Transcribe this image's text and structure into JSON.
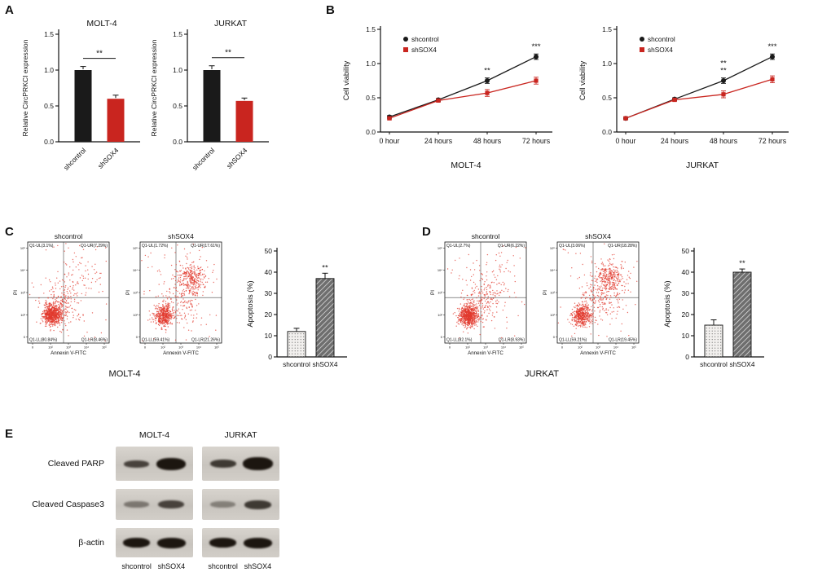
{
  "colors": {
    "black_series": "#1a1a1a",
    "red_series": "#c9251f",
    "flow_dot": "#e23a2e",
    "axis": "#1a1a1a"
  },
  "panels": {
    "a": {
      "label": "A"
    },
    "b": {
      "label": "B"
    },
    "c": {
      "label": "C",
      "group_label": "MOLT-4"
    },
    "d": {
      "label": "D",
      "group_label": "JURKAT"
    },
    "e": {
      "label": "E",
      "col_headers": [
        "MOLT-4",
        "JURKAT"
      ],
      "rows": [
        {
          "label": "Cleaved PARP",
          "bands": [
            [
              {
                "i": 0.75,
                "h": 9
              },
              {
                "i": 1.0,
                "h": 15
              }
            ],
            [
              {
                "i": 0.8,
                "h": 10
              },
              {
                "i": 1.0,
                "h": 16
              }
            ]
          ]
        },
        {
          "label": "Cleaved Caspase3",
          "bands": [
            [
              {
                "i": 0.45,
                "h": 8
              },
              {
                "i": 0.75,
                "h": 10
              }
            ],
            [
              {
                "i": 0.4,
                "h": 8
              },
              {
                "i": 0.8,
                "h": 11
              }
            ]
          ]
        },
        {
          "label": "β-actin",
          "bands": [
            [
              {
                "i": 1.0,
                "h": 12
              },
              {
                "i": 1.0,
                "h": 13
              }
            ],
            [
              {
                "i": 1.0,
                "h": 12
              },
              {
                "i": 1.0,
                "h": 13
              }
            ]
          ]
        }
      ],
      "lane_labels": [
        "shcontrol",
        "shSOX4",
        "shcontrol",
        "shSOX4"
      ]
    }
  },
  "chart_data": [
    {
      "id": "a-molt4",
      "type": "bar",
      "title": "MOLT-4",
      "ylabel": "Relative CircPRKCI expression",
      "categories": [
        "shcontrol",
        "shSOX4"
      ],
      "values": [
        1.0,
        0.6
      ],
      "errors": [
        0.05,
        0.05
      ],
      "ylim": [
        0,
        1.5
      ],
      "yticks": [
        0,
        0.5,
        1.0,
        1.5
      ],
      "significance": "**",
      "bar_colors": [
        "#1a1a1a",
        "#c9251f"
      ]
    },
    {
      "id": "a-jurkat",
      "type": "bar",
      "title": "JURKAT",
      "ylabel": "Relative CircPRKCI expression",
      "categories": [
        "shcontrol",
        "shSOX4"
      ],
      "values": [
        1.0,
        0.57
      ],
      "errors": [
        0.06,
        0.04
      ],
      "ylim": [
        0,
        1.5
      ],
      "yticks": [
        0,
        0.5,
        1.0,
        1.5
      ],
      "significance": "**",
      "bar_colors": [
        "#1a1a1a",
        "#c9251f"
      ]
    },
    {
      "id": "b-molt4",
      "type": "line",
      "title": "MOLT-4",
      "ylabel": "Cell viability",
      "x_labels": [
        "0 hour",
        "24 hours",
        "48 hours",
        "72 hours"
      ],
      "ylim": [
        0,
        1.5
      ],
      "yticks": [
        0,
        0.5,
        1.0,
        1.5
      ],
      "series": [
        {
          "name": "shcontrol",
          "color": "#1a1a1a",
          "marker": "circle",
          "values": [
            0.22,
            0.47,
            0.75,
            1.1
          ],
          "errors": [
            0.02,
            0.02,
            0.04,
            0.04
          ]
        },
        {
          "name": "shSOX4",
          "color": "#c9251f",
          "marker": "square",
          "values": [
            0.2,
            0.46,
            0.57,
            0.75
          ],
          "errors": [
            0.02,
            0.02,
            0.05,
            0.05
          ]
        }
      ],
      "annotations": [
        {
          "x_index": 2,
          "lines": [
            "**"
          ]
        },
        {
          "x_index": 3,
          "lines": [
            "***"
          ]
        }
      ],
      "legend_position": "top-left"
    },
    {
      "id": "b-jurkat",
      "type": "line",
      "title": "JURKAT",
      "ylabel": "Cell viability",
      "x_labels": [
        "0 hour",
        "24 hours",
        "48 hours",
        "72 hours"
      ],
      "ylim": [
        0,
        1.5
      ],
      "yticks": [
        0,
        0.5,
        1.0,
        1.5
      ],
      "series": [
        {
          "name": "shcontrol",
          "color": "#1a1a1a",
          "marker": "circle",
          "values": [
            0.2,
            0.48,
            0.75,
            1.1
          ],
          "errors": [
            0.02,
            0.02,
            0.04,
            0.04
          ]
        },
        {
          "name": "shSOX4",
          "color": "#c9251f",
          "marker": "square",
          "values": [
            0.2,
            0.47,
            0.55,
            0.77
          ],
          "errors": [
            0.02,
            0.02,
            0.05,
            0.05
          ]
        }
      ],
      "annotations": [
        {
          "x_index": 2,
          "lines": [
            "**",
            "**"
          ]
        },
        {
          "x_index": 3,
          "lines": [
            "***"
          ]
        }
      ],
      "legend_position": "top-left"
    },
    {
      "id": "c-flow-shcontrol",
      "type": "scatter-flow",
      "title": "shcontrol",
      "xlabel": "Annexin V-FITC",
      "ylabel": "PI",
      "axis_ticks": [
        "0",
        "10²",
        "10³",
        "10⁴",
        "10⁵"
      ],
      "quadrant_labels": {
        "ul": "Q1-UL(3.1%)",
        "ur": "Q1-UR(7.29%)",
        "ll": "Q1-LL(80.84%)",
        "lr": "Q1-LR(8.46%)"
      },
      "seed": 11,
      "clusters": [
        {
          "n": 680,
          "cx": 0.3,
          "cy": 0.72,
          "sx": 0.055,
          "sy": 0.05
        },
        {
          "n": 180,
          "cx": 0.4,
          "cy": 0.63,
          "sx": 0.1,
          "sy": 0.1
        },
        {
          "n": 90,
          "cx": 0.58,
          "cy": 0.4,
          "sx": 0.16,
          "sy": 0.15
        },
        {
          "n": 50,
          "uniform": true
        }
      ]
    },
    {
      "id": "c-flow-shsox4",
      "type": "scatter-flow",
      "title": "shSOX4",
      "xlabel": "Annexin V-FITC",
      "ylabel": "PI",
      "axis_ticks": [
        "0",
        "10²",
        "10³",
        "10⁴",
        "10⁵"
      ],
      "quadrant_labels": {
        "ul": "Q1-UL(1.72%)",
        "ur": "Q1-UR(17.61%)",
        "ll": "Q1-LL(59.41%)",
        "lr": "Q1-LR(21.26%)"
      },
      "seed": 22,
      "clusters": [
        {
          "n": 460,
          "cx": 0.29,
          "cy": 0.73,
          "sx": 0.055,
          "sy": 0.05
        },
        {
          "n": 290,
          "cx": 0.63,
          "cy": 0.36,
          "sx": 0.09,
          "sy": 0.08
        },
        {
          "n": 170,
          "cx": 0.5,
          "cy": 0.58,
          "sx": 0.14,
          "sy": 0.13
        },
        {
          "n": 60,
          "uniform": true
        }
      ]
    },
    {
      "id": "c-apoptosis",
      "type": "bar",
      "title": "",
      "ylabel": "Apoptosis (%)",
      "categories": [
        "shcontrol",
        "shSOX4"
      ],
      "values": [
        12,
        37
      ],
      "errors": [
        1.5,
        2.5
      ],
      "ylim": [
        0,
        50
      ],
      "yticks": [
        0,
        10,
        20,
        30,
        40,
        50
      ],
      "significance": "**",
      "significance_on": "shSOX4",
      "patterns": [
        "stipple",
        "hatch"
      ]
    },
    {
      "id": "d-flow-shcontrol",
      "type": "scatter-flow",
      "title": "shcontrol",
      "xlabel": "Annexin V-FITC",
      "ylabel": "PI",
      "axis_ticks": [
        "0",
        "10²",
        "10³",
        "10⁴",
        "10⁵"
      ],
      "quadrant_labels": {
        "ul": "Q1-UL(2.7%)",
        "ur": "Q1-UR(6.22%)",
        "ll": "Q1-LL(82.1%)",
        "lr": "Q1-LR(8.93%)"
      },
      "seed": 33,
      "clusters": [
        {
          "n": 700,
          "cx": 0.29,
          "cy": 0.73,
          "sx": 0.055,
          "sy": 0.05
        },
        {
          "n": 160,
          "cx": 0.42,
          "cy": 0.6,
          "sx": 0.11,
          "sy": 0.11
        },
        {
          "n": 90,
          "cx": 0.6,
          "cy": 0.38,
          "sx": 0.15,
          "sy": 0.14
        },
        {
          "n": 50,
          "uniform": true
        }
      ]
    },
    {
      "id": "d-flow-shsox4",
      "type": "scatter-flow",
      "title": "shSOX4",
      "xlabel": "Annexin V-FITC",
      "ylabel": "PI",
      "axis_ticks": [
        "0",
        "10²",
        "10³",
        "10⁴",
        "10⁵"
      ],
      "quadrant_labels": {
        "ul": "Q1-UL(3.06%)",
        "ur": "Q1-UR(18.28%)",
        "ll": "Q1-LL(59.21%)",
        "lr": "Q1-LR(19.45%)"
      },
      "seed": 44,
      "clusters": [
        {
          "n": 450,
          "cx": 0.3,
          "cy": 0.72,
          "sx": 0.06,
          "sy": 0.05
        },
        {
          "n": 300,
          "cx": 0.64,
          "cy": 0.35,
          "sx": 0.09,
          "sy": 0.08
        },
        {
          "n": 170,
          "cx": 0.52,
          "cy": 0.57,
          "sx": 0.14,
          "sy": 0.12
        },
        {
          "n": 60,
          "uniform": true
        }
      ]
    },
    {
      "id": "d-apoptosis",
      "type": "bar",
      "title": "",
      "ylabel": "Apoptosis (%)",
      "categories": [
        "shcontrol",
        "shSOX4"
      ],
      "values": [
        15,
        40
      ],
      "errors": [
        2.5,
        1.5
      ],
      "ylim": [
        0,
        50
      ],
      "yticks": [
        0,
        10,
        20,
        30,
        40,
        50
      ],
      "significance": "**",
      "significance_on": "shSOX4",
      "patterns": [
        "stipple",
        "hatch"
      ]
    }
  ]
}
